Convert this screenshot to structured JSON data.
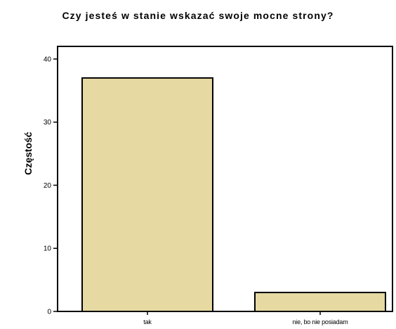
{
  "chart_data": {
    "type": "bar",
    "title": "Czy jesteś w stanie wskazać swoje mocne strony?",
    "xlabel": "",
    "ylabel": "Częstość",
    "categories": [
      "tak",
      "nie, bo nie posiadam"
    ],
    "values": [
      37,
      3
    ],
    "ylim": [
      0,
      42
    ],
    "yticks": [
      0,
      10,
      20,
      30,
      40
    ],
    "grid": false,
    "legend": "none",
    "bar_color": "#E6D9A2",
    "bar_edge_color": "#000000"
  }
}
